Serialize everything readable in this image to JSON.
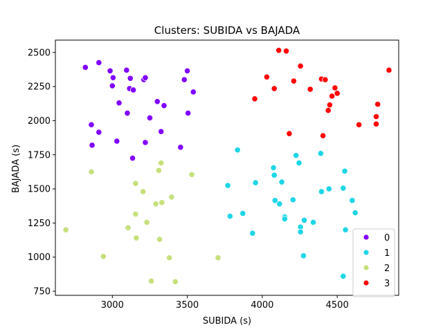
{
  "chart_data": {
    "type": "scatter",
    "title": "Clusters: SUBIDA vs BAJADA",
    "xlabel": "SUBIDA (s)",
    "ylabel": "BAJADA (s)",
    "xlim": [
      2620,
      4910
    ],
    "ylim": [
      720,
      2590
    ],
    "xticks": [
      3000,
      3500,
      4000,
      4500
    ],
    "yticks": [
      750,
      1000,
      1250,
      1500,
      1750,
      2000,
      2250,
      2500
    ],
    "grid": false,
    "legend_position": "lower-right",
    "series": [
      {
        "name": "0",
        "color": "#8000ff",
        "points": [
          [
            2820,
            2390
          ],
          [
            2910,
            2425
          ],
          [
            2985,
            2365
          ],
          [
            3005,
            2315
          ],
          [
            3000,
            2255
          ],
          [
            3095,
            2370
          ],
          [
            3120,
            2310
          ],
          [
            3115,
            2235
          ],
          [
            3140,
            2225
          ],
          [
            3210,
            2300
          ],
          [
            3220,
            2315
          ],
          [
            3500,
            2365
          ],
          [
            3480,
            2300
          ],
          [
            3540,
            2210
          ],
          [
            3045,
            2130
          ],
          [
            3300,
            2140
          ],
          [
            3345,
            2110
          ],
          [
            3100,
            2055
          ],
          [
            3250,
            2020
          ],
          [
            3505,
            2055
          ],
          [
            2860,
            1970
          ],
          [
            2910,
            1915
          ],
          [
            3325,
            1920
          ],
          [
            3030,
            1850
          ],
          [
            3220,
            1840
          ],
          [
            2865,
            1820
          ],
          [
            3455,
            1805
          ],
          [
            3135,
            1725
          ]
        ]
      },
      {
        "name": "1",
        "color": "#1ed6e6",
        "points": [
          [
            3835,
            1785
          ],
          [
            4390,
            1760
          ],
          [
            4225,
            1745
          ],
          [
            4245,
            1690
          ],
          [
            4075,
            1655
          ],
          [
            4550,
            1630
          ],
          [
            4080,
            1600
          ],
          [
            3955,
            1545
          ],
          [
            4130,
            1550
          ],
          [
            3770,
            1525
          ],
          [
            4540,
            1505
          ],
          [
            4445,
            1500
          ],
          [
            4395,
            1480
          ],
          [
            4085,
            1415
          ],
          [
            4205,
            1420
          ],
          [
            4115,
            1390
          ],
          [
            4600,
            1415
          ],
          [
            4620,
            1325
          ],
          [
            3870,
            1320
          ],
          [
            3785,
            1300
          ],
          [
            4150,
            1295
          ],
          [
            4150,
            1280
          ],
          [
            4280,
            1270
          ],
          [
            4340,
            1255
          ],
          [
            4255,
            1220
          ],
          [
            4255,
            1185
          ],
          [
            4555,
            1200
          ],
          [
            3935,
            1175
          ],
          [
            4275,
            1010
          ],
          [
            4540,
            860
          ]
        ]
      },
      {
        "name": "2",
        "color": "#c6e07c",
        "points": [
          [
            3325,
            1690
          ],
          [
            2860,
            1625
          ],
          [
            3310,
            1635
          ],
          [
            3530,
            1605
          ],
          [
            3155,
            1540
          ],
          [
            3205,
            1480
          ],
          [
            3395,
            1440
          ],
          [
            3330,
            1400
          ],
          [
            3290,
            1390
          ],
          [
            3155,
            1315
          ],
          [
            3230,
            1255
          ],
          [
            3105,
            1215
          ],
          [
            2690,
            1200
          ],
          [
            3160,
            1140
          ],
          [
            3315,
            1130
          ],
          [
            2940,
            1005
          ],
          [
            3380,
            995
          ],
          [
            3705,
            995
          ],
          [
            3260,
            825
          ],
          [
            3420,
            820
          ]
        ]
      },
      {
        "name": "3",
        "color": "#ff0000",
        "points": [
          [
            4110,
            2515
          ],
          [
            4160,
            2510
          ],
          [
            4255,
            2400
          ],
          [
            4845,
            2370
          ],
          [
            4030,
            2320
          ],
          [
            4395,
            2305
          ],
          [
            4420,
            2300
          ],
          [
            4210,
            2290
          ],
          [
            4080,
            2235
          ],
          [
            4320,
            2230
          ],
          [
            4485,
            2240
          ],
          [
            4500,
            2200
          ],
          [
            4465,
            2180
          ],
          [
            3950,
            2160
          ],
          [
            4770,
            2120
          ],
          [
            4450,
            2115
          ],
          [
            4440,
            2075
          ],
          [
            4760,
            2030
          ],
          [
            4645,
            1970
          ],
          [
            4760,
            1975
          ],
          [
            4180,
            1905
          ],
          [
            4405,
            1890
          ]
        ]
      }
    ]
  }
}
